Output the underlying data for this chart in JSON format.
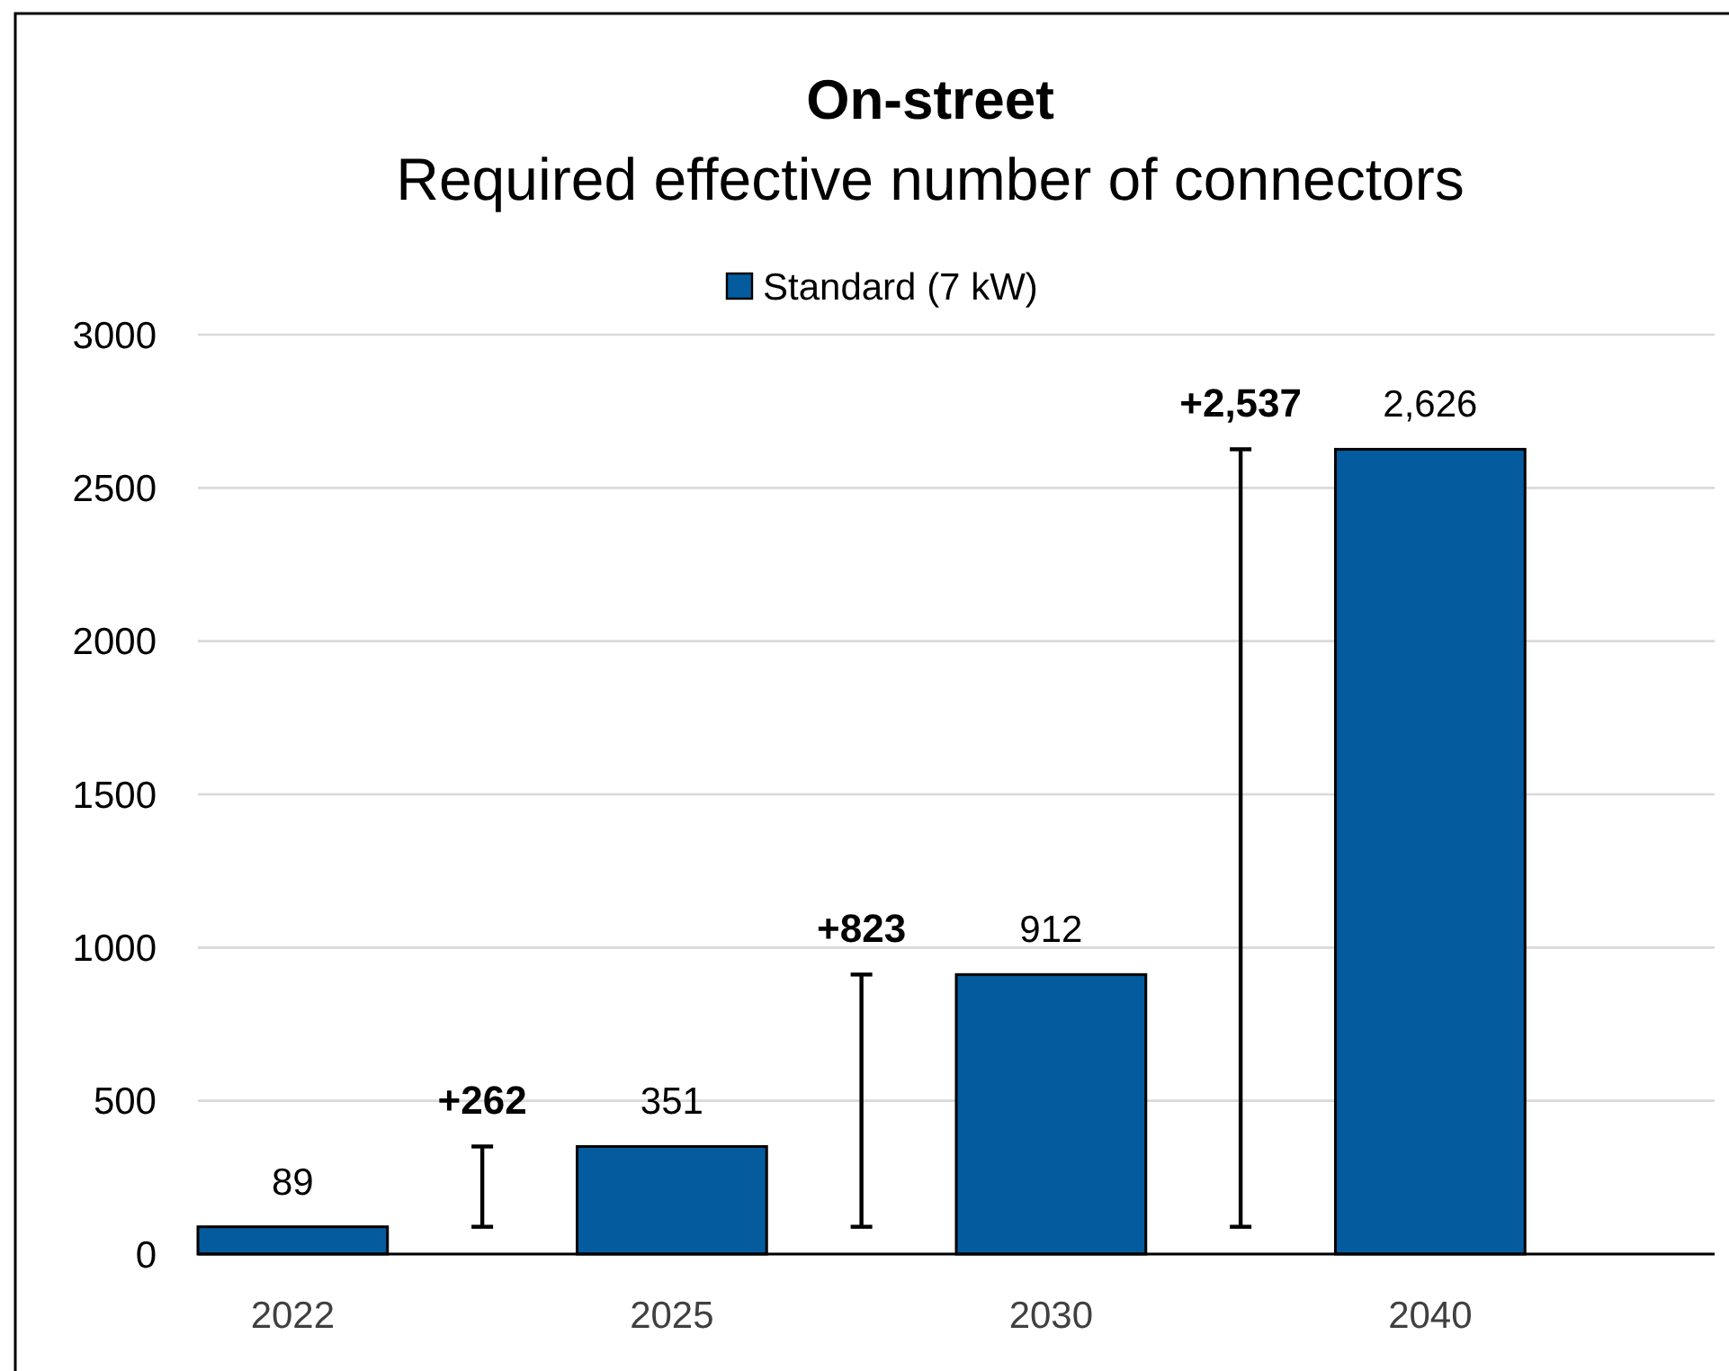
{
  "chart_data": {
    "type": "bar",
    "title": "On-street",
    "subtitle": "Required effective number of connectors",
    "categories": [
      "2022",
      null,
      "2025",
      null,
      "2030",
      null,
      "2040",
      null
    ],
    "series": [
      {
        "name": "Standard (7 kW)",
        "color": "#045b9d",
        "values": [
          89,
          null,
          351,
          null,
          912,
          null,
          2626,
          null
        ],
        "value_labels": [
          "89",
          null,
          "351",
          null,
          "912",
          null,
          "2,626",
          null
        ]
      },
      {
        "color": "#000000",
        "base": [
          null,
          89,
          null,
          89,
          null,
          89,
          null,
          null
        ],
        "values": [
          null,
          262,
          null,
          823,
          null,
          2537,
          null,
          null
        ],
        "value_labels": [
          null,
          "+262",
          null,
          "+823",
          null,
          "+2,537",
          null,
          null
        ]
      }
    ],
    "ylim": [
      0,
      3000
    ],
    "yticks": [
      0,
      500,
      1000,
      1500,
      2000,
      2500,
      3000
    ],
    "grid": "y",
    "legend": "top"
  }
}
